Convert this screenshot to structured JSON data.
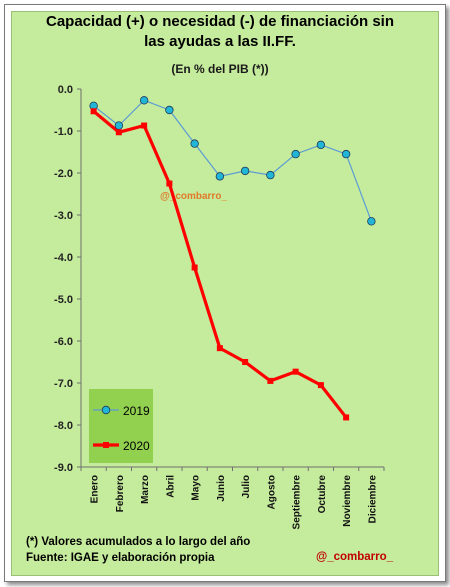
{
  "title_line1": "Capacidad (+) o necesidad (-) de financiación sin",
  "title_line2": "las ayudas a las II.FF.",
  "subtitle": "(En % del PIB (*))",
  "footnote_line1": "(*) Valores acumulados a lo largo del año",
  "footnote_line2": "Fuente: IGAE y elaboración propia",
  "credit": "@_combarro_",
  "watermark": "@_combarro_",
  "colors": {
    "series_2019": "#5b9bd5",
    "marker_2019": "#21b5d6",
    "series_2020": "#ff0000",
    "background": "#c5eb9c",
    "legend_box": "#92d050",
    "watermark": "#e07a2a"
  },
  "chart_data": {
    "type": "line",
    "categories": [
      "Enero",
      "Febrero",
      "Marzo",
      "Abril",
      "Mayo",
      "Junio",
      "Julio",
      "Agosto",
      "Septiembre",
      "Octubre",
      "Noviembre",
      "Diciembre"
    ],
    "series": [
      {
        "name": "2019",
        "values": [
          -0.4,
          -0.87,
          -0.27,
          -0.5,
          -1.3,
          -2.08,
          -1.95,
          -2.05,
          -1.55,
          -1.33,
          -1.55,
          -3.15
        ]
      },
      {
        "name": "2020",
        "values": [
          -0.53,
          -1.03,
          -0.87,
          -2.25,
          -4.25,
          -6.17,
          -6.5,
          -6.95,
          -6.73,
          -7.05,
          -7.82,
          null
        ]
      }
    ],
    "ylim": [
      -9.0,
      0.0
    ],
    "yticks": [
      "0.0",
      "-1.0",
      "-2.0",
      "-3.0",
      "-4.0",
      "-5.0",
      "-6.0",
      "-7.0",
      "-8.0",
      "-9.0"
    ],
    "grid": false,
    "legend_position": "bottom-left"
  }
}
